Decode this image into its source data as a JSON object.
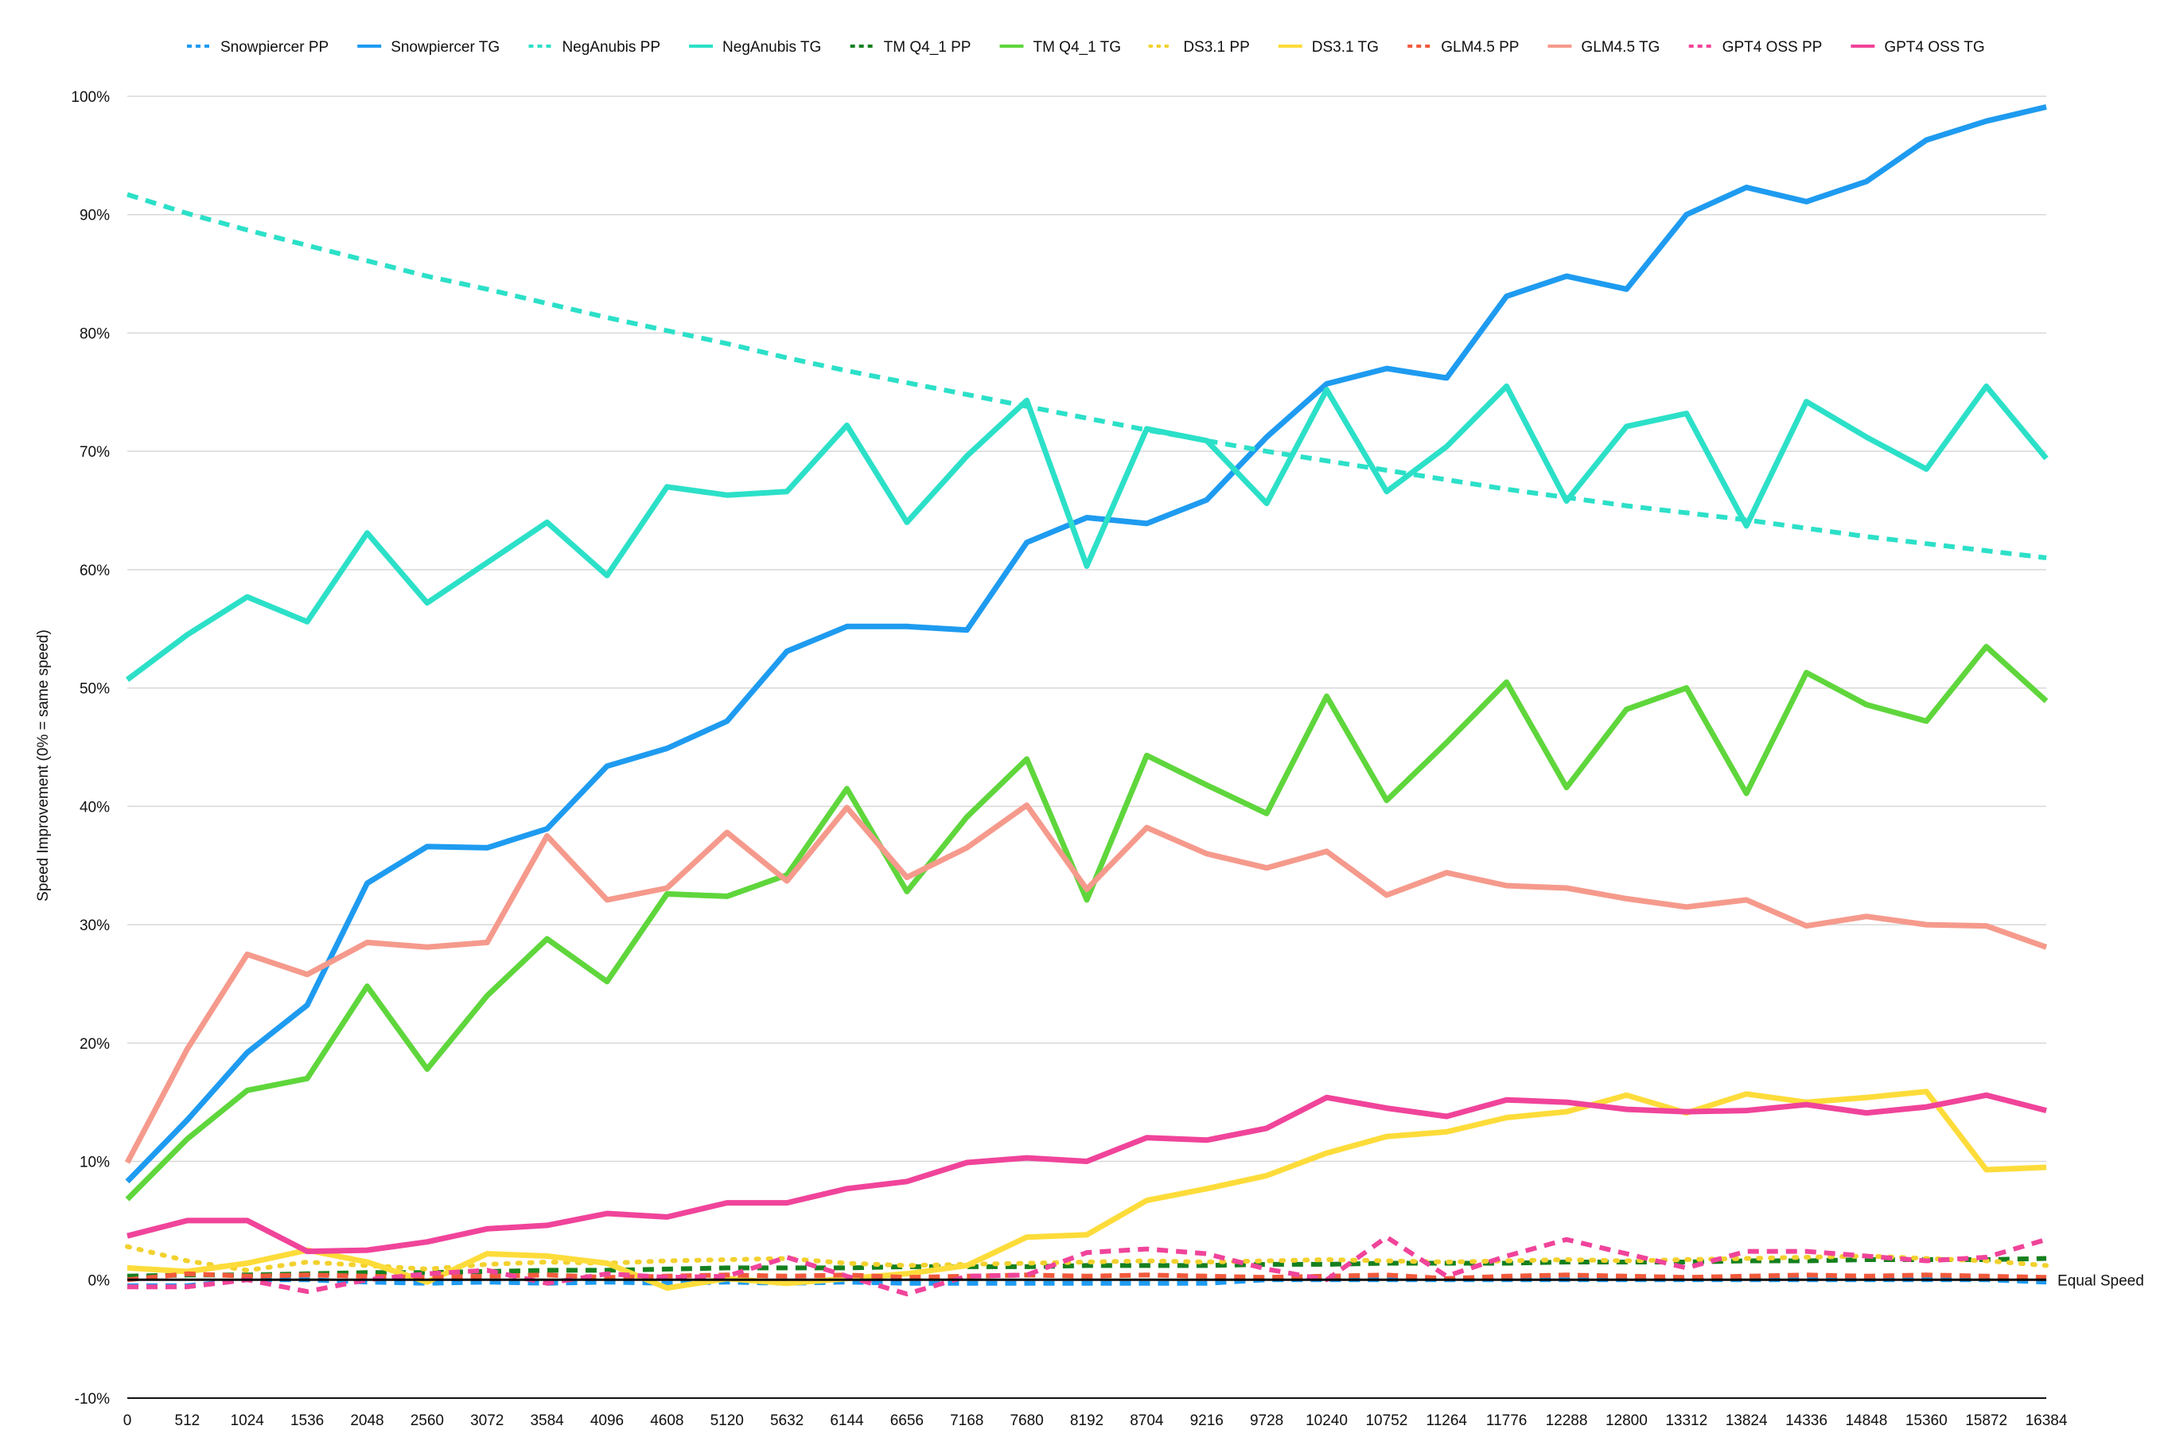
{
  "chart_data": {
    "type": "line",
    "title": "",
    "xlabel": "",
    "ylabel": "Speed Improvement (0% = same speed)",
    "ylim": [
      -10,
      100
    ],
    "y_ticks": [
      "-10%",
      "0%",
      "10%",
      "20%",
      "30%",
      "40%",
      "50%",
      "60%",
      "70%",
      "80%",
      "90%",
      "100%"
    ],
    "x": [
      0,
      512,
      1024,
      1536,
      2048,
      2560,
      3072,
      3584,
      4096,
      4608,
      5120,
      5632,
      6144,
      6656,
      7168,
      7680,
      8192,
      8704,
      9216,
      9728,
      10240,
      10752,
      11264,
      11776,
      12288,
      12800,
      13312,
      13824,
      14336,
      14848,
      15360,
      15872,
      16384
    ],
    "grid": true,
    "legend_position": "top",
    "reference_line": {
      "label": "Equal Speed",
      "value": 0,
      "color": "#000000"
    },
    "series": [
      {
        "name": "Snowpiercer PP",
        "color": "#1E9BF0",
        "style": "dashed",
        "values": [
          -0.5,
          -0.5,
          0,
          0,
          -0.2,
          -0.3,
          -0.2,
          -0.3,
          -0.2,
          -0.3,
          -0.2,
          -0.3,
          -0.2,
          -0.3,
          -0.3,
          -0.3,
          -0.3,
          -0.3,
          -0.3,
          0,
          0,
          0,
          0,
          0,
          0,
          0,
          0,
          0,
          0,
          0,
          0,
          0,
          -0.2
        ]
      },
      {
        "name": "Snowpiercer TG",
        "color": "#1E9BF0",
        "style": "solid",
        "values": [
          8.3,
          13.5,
          19.2,
          23.2,
          33.5,
          36.6,
          36.5,
          38.1,
          43.4,
          44.9,
          47.2,
          53.1,
          55.2,
          55.2,
          54.9,
          62.3,
          64.4,
          63.9,
          65.9,
          71.2,
          75.7,
          77,
          76.2,
          83.1,
          84.8,
          83.7,
          90,
          92.3,
          91.1,
          92.8,
          96.3,
          97.9,
          99.1
        ]
      },
      {
        "name": "NegAnubis PP",
        "color": "#2CE0C8",
        "style": "dashed",
        "values": [
          91.7,
          90.1,
          88.7,
          87.4,
          86.1,
          84.8,
          83.7,
          82.5,
          81.3,
          80.2,
          79.1,
          77.9,
          76.8,
          75.8,
          74.8,
          73.8,
          72.8,
          71.8,
          70.9,
          70,
          69.2,
          68.4,
          67.6,
          66.8,
          66.1,
          65.4,
          64.8,
          64.2,
          63.5,
          62.8,
          62.2,
          61.6,
          61
        ]
      },
      {
        "name": "NegAnubis TG",
        "color": "#2CE0C8",
        "style": "solid",
        "values": [
          50.7,
          54.5,
          57.7,
          55.6,
          63.1,
          57.2,
          60.6,
          64,
          59.5,
          67,
          66.3,
          66.6,
          72.2,
          64,
          69.6,
          74.3,
          60.3,
          71.9,
          70.9,
          65.6,
          75.2,
          66.6,
          70.4,
          75.5,
          65.8,
          72.1,
          73.2,
          63.7,
          74.2,
          71.2,
          68.5,
          75.5,
          69.4
        ]
      },
      {
        "name": "TM Q4_1 PP",
        "color": "#15801F",
        "style": "dashed",
        "values": [
          0.3,
          0.4,
          0.4,
          0.5,
          0.6,
          0.6,
          0.7,
          0.8,
          0.8,
          0.9,
          1,
          1,
          1,
          1.1,
          1.1,
          1.1,
          1.2,
          1.2,
          1.2,
          1.3,
          1.3,
          1.4,
          1.4,
          1.4,
          1.5,
          1.5,
          1.5,
          1.6,
          1.6,
          1.7,
          1.7,
          1.7,
          1.8
        ]
      },
      {
        "name": "TM Q4_1 TG",
        "color": "#5FD63C",
        "style": "solid",
        "values": [
          6.8,
          11.9,
          16,
          17,
          24.8,
          17.8,
          24,
          28.8,
          25.2,
          32.6,
          32.4,
          34.2,
          41.5,
          32.8,
          39.1,
          44,
          32.1,
          44.3,
          41.8,
          39.4,
          49.3,
          40.5,
          45.4,
          50.5,
          41.6,
          48.2,
          50,
          41.1,
          51.3,
          48.6,
          47.2,
          53.5,
          48.9
        ]
      },
      {
        "name": "DS3.1 PP",
        "color": "#F2D12E",
        "style": "dotted",
        "values": [
          2.8,
          1.6,
          0.8,
          1.5,
          1.2,
          0.9,
          1.3,
          1.5,
          1.4,
          1.6,
          1.7,
          1.8,
          1.4,
          1.2,
          1.3,
          1.4,
          1.5,
          1.6,
          1.5,
          1.6,
          1.7,
          1.6,
          1.5,
          1.6,
          1.7,
          1.6,
          1.7,
          1.8,
          1.9,
          2,
          1.8,
          1.6,
          1.2
        ]
      },
      {
        "name": "DS3.1 TG",
        "color": "#FDDC3A",
        "style": "solid",
        "values": [
          1,
          0.7,
          1.4,
          2.5,
          1.5,
          -0.2,
          2.2,
          2,
          1.4,
          -0.7,
          0.1,
          -0.3,
          0.1,
          0.5,
          1.2,
          3.6,
          3.8,
          6.7,
          7.7,
          8.8,
          10.7,
          12.1,
          12.5,
          13.7,
          14.2,
          15.6,
          14.1,
          15.7,
          15,
          15.4,
          15.9,
          9.3,
          9.5
        ]
      },
      {
        "name": "GLM4.5 PP",
        "color": "#F25A3C",
        "style": "dashed",
        "values": [
          0,
          0.5,
          0.3,
          0.4,
          0.3,
          0.2,
          0.3,
          0.4,
          0.2,
          0.3,
          0.4,
          0.3,
          0.4,
          0.2,
          0.3,
          0.4,
          0.3,
          0.4,
          0.3,
          0.2,
          0.3,
          0.4,
          0.1,
          0.3,
          0.4,
          0.3,
          0.2,
          0.3,
          0.4,
          0.3,
          0.4,
          0.3,
          0.2
        ]
      },
      {
        "name": "GLM4.5 TG",
        "color": "#F59A8C",
        "style": "solid",
        "values": [
          9.9,
          19.5,
          27.5,
          25.8,
          28.5,
          28.1,
          28.5,
          37.5,
          32.1,
          33.1,
          37.8,
          33.7,
          39.9,
          34,
          36.5,
          40.1,
          33,
          38.2,
          36,
          34.8,
          36.2,
          32.5,
          34.4,
          33.3,
          33.1,
          32.2,
          31.5,
          32.1,
          29.9,
          30.7,
          30,
          29.9,
          28.1
        ]
      },
      {
        "name": "GPT4 OSS PP",
        "color": "#F0449A",
        "style": "dashed",
        "values": [
          -0.6,
          -0.6,
          0,
          -1,
          0,
          0.5,
          0.8,
          -0.3,
          0.5,
          0.2,
          0.3,
          1.9,
          0.3,
          -1.2,
          0.3,
          0.4,
          2.3,
          2.6,
          2.2,
          0.9,
          0,
          3.6,
          0.3,
          2,
          3.4,
          2.2,
          1,
          2.4,
          2.4,
          2,
          1.6,
          1.9,
          3.4
        ]
      },
      {
        "name": "GPT4 OSS TG",
        "color": "#F0449A",
        "style": "solid",
        "values": [
          3.7,
          5,
          5,
          2.4,
          2.5,
          3.2,
          4.3,
          4.6,
          5.6,
          5.3,
          6.5,
          6.5,
          7.7,
          8.3,
          9.9,
          10.3,
          10,
          12,
          11.8,
          12.8,
          15.4,
          14.5,
          13.8,
          15.2,
          15,
          14.4,
          14.2,
          14.3,
          14.8,
          14.1,
          14.6,
          15.6,
          14.3
        ]
      }
    ]
  }
}
